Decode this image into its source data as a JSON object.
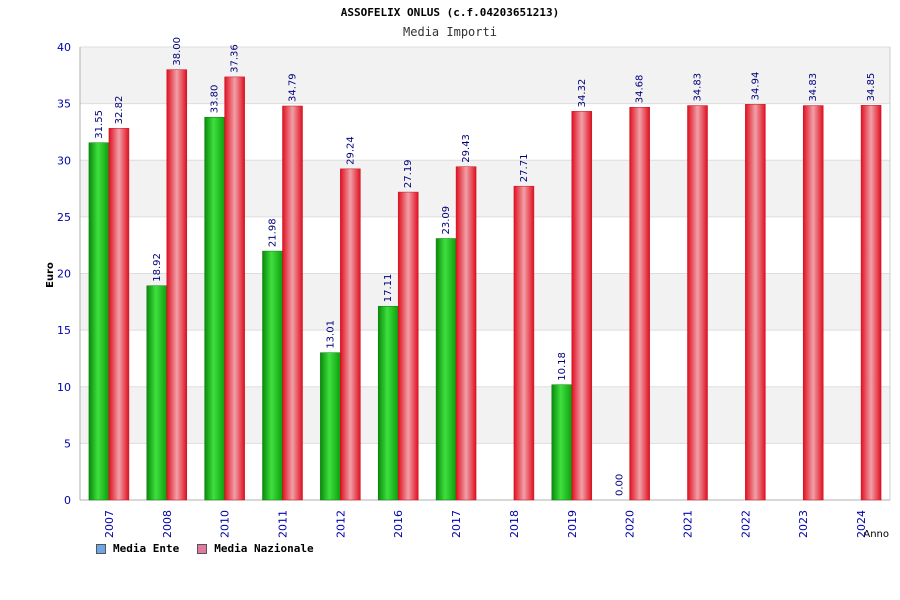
{
  "header": {
    "title": "ASSOFELIX ONLUS (c.f.04203651213)",
    "subtitle": "Media Importi"
  },
  "colors": {
    "ente_bar": "#16b416",
    "nazionale_bar": "#e8202c",
    "legend_ente": "#6ea6e8",
    "legend_nazionale": "#e07aa0",
    "band": "#f2f2f2",
    "axis_text": "#0000aa"
  },
  "chart_data": {
    "type": "bar",
    "title": "ASSOFELIX ONLUS (c.f.04203651213)",
    "subtitle": "Media Importi",
    "xlabel": "Anno",
    "ylabel": "Euro",
    "ylim": [
      0,
      40
    ],
    "yticks": [
      0,
      5,
      10,
      15,
      20,
      25,
      30,
      35,
      40
    ],
    "categories": [
      "2007",
      "2008",
      "2010",
      "2011",
      "2012",
      "2016",
      "2017",
      "2018",
      "2019",
      "2020",
      "2021",
      "2022",
      "2023",
      "2024"
    ],
    "series": [
      {
        "name": "Media Ente",
        "values": [
          31.55,
          18.92,
          33.8,
          21.98,
          13.01,
          17.11,
          23.09,
          null,
          10.18,
          0.0,
          null,
          null,
          null,
          null
        ],
        "labels": [
          "31.55",
          "18.92",
          "33.80",
          "21.98",
          "13.01",
          "17.11",
          "23.09",
          "",
          "10.18",
          "0.00",
          "",
          "",
          "",
          ""
        ]
      },
      {
        "name": "Media Nazionale",
        "values": [
          32.82,
          38.0,
          37.36,
          34.79,
          29.24,
          27.19,
          29.43,
          27.71,
          34.32,
          34.68,
          34.83,
          34.94,
          34.83,
          34.85
        ],
        "labels": [
          "32.82",
          "38.00",
          "37.36",
          "34.79",
          "29.24",
          "27.19",
          "29.43",
          "27.71",
          "34.32",
          "34.68",
          "34.83",
          "34.94",
          "34.83",
          "34.85"
        ]
      }
    ],
    "grid": true,
    "legend_position": "bottom-left"
  }
}
